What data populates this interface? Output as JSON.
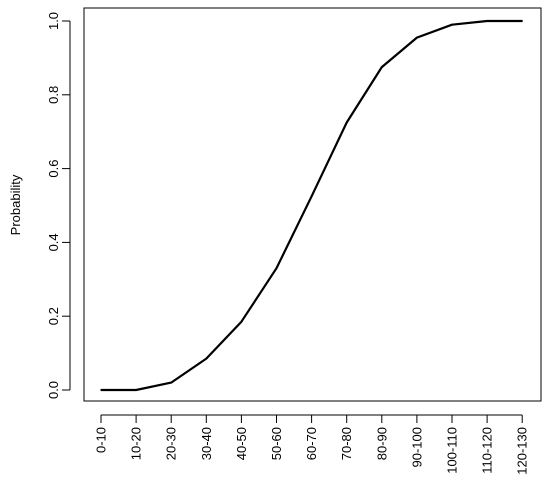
{
  "chart_data": {
    "type": "line",
    "title": "",
    "xlabel": "",
    "ylabel": "Probability",
    "categories": [
      "0-10",
      "10-20",
      "20-30",
      "30-40",
      "40-50",
      "50-60",
      "60-70",
      "70-80",
      "80-90",
      "90-100",
      "100-110",
      "110-120",
      "120-130"
    ],
    "series": [
      {
        "values": [
          0.0,
          0.0,
          0.02,
          0.085,
          0.185,
          0.33,
          0.525,
          0.725,
          0.875,
          0.955,
          0.99,
          1.0,
          1.0
        ]
      }
    ],
    "yticks": [
      "0.0",
      "0.2",
      "0.4",
      "0.6",
      "0.8",
      "1.0"
    ],
    "ylim": [
      0,
      1
    ],
    "grid": false,
    "legend": "none",
    "line_color": "#000000"
  }
}
